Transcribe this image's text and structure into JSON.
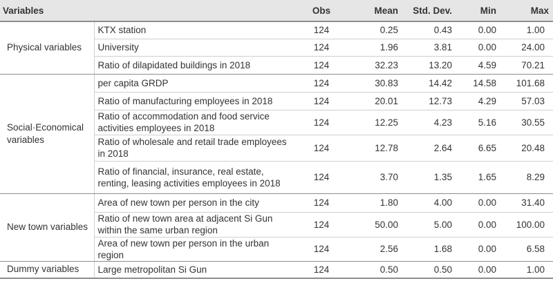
{
  "table": {
    "headers": {
      "variables": "Variables",
      "obs": "Obs",
      "mean": "Mean",
      "std": "Std. Dev.",
      "min": "Min",
      "max": "Max"
    },
    "groups": [
      {
        "name": "Physical variables",
        "rows": [
          {
            "variable": "KTX station",
            "obs": "124",
            "mean": "0.25",
            "std": "0.43",
            "min": "0.00",
            "max": "1.00"
          },
          {
            "variable": "University",
            "obs": "124",
            "mean": "1.96",
            "std": "3.81",
            "min": "0.00",
            "max": "24.00"
          },
          {
            "variable": "Ratio of dilapidated buildings in 2018",
            "obs": "124",
            "mean": "32.23",
            "std": "13.20",
            "min": "4.59",
            "max": "70.21"
          }
        ]
      },
      {
        "name": "Social·Economical variables",
        "rows": [
          {
            "variable": "per capita GRDP",
            "obs": "124",
            "mean": "30.83",
            "std": "14.42",
            "min": "14.58",
            "max": "101.68"
          },
          {
            "variable": "Ratio of manufacturing employees in 2018",
            "obs": "124",
            "mean": "20.01",
            "std": "12.73",
            "min": "4.29",
            "max": "57.03"
          },
          {
            "variable": "Ratio of accommodation and food service activities employees in 2018",
            "obs": "124",
            "mean": "12.25",
            "std": "4.23",
            "min": "5.16",
            "max": "30.55"
          },
          {
            "variable": "Ratio of wholesale and retail trade employees in 2018",
            "obs": "124",
            "mean": "12.78",
            "std": "2.64",
            "min": "6.65",
            "max": "20.48"
          },
          {
            "variable": "Ratio of financial, insurance, real estate, renting, leasing activities employees in 2018",
            "obs": "124",
            "mean": "3.70",
            "std": "1.35",
            "min": "1.65",
            "max": "8.29"
          }
        ]
      },
      {
        "name": "New town variables",
        "rows": [
          {
            "variable": "Area of new town per person in the city",
            "obs": "124",
            "mean": "1.80",
            "std": "4.00",
            "min": "0.00",
            "max": "31.40"
          },
          {
            "variable": "Ratio of new town area at adjacent Si Gun within the same urban region",
            "obs": "124",
            "mean": "50.00",
            "std": "5.00",
            "min": "0.00",
            "max": "100.00"
          },
          {
            "variable": "Area of new town per person in the urban region",
            "obs": "124",
            "mean": "2.56",
            "std": "1.68",
            "min": "0.00",
            "max": "6.58"
          }
        ]
      },
      {
        "name": "Dummy variables",
        "rows": [
          {
            "variable": "Large metropolitan Si Gun",
            "obs": "124",
            "mean": "0.50",
            "std": "0.50",
            "min": "0.00",
            "max": "1.00"
          }
        ]
      }
    ]
  }
}
